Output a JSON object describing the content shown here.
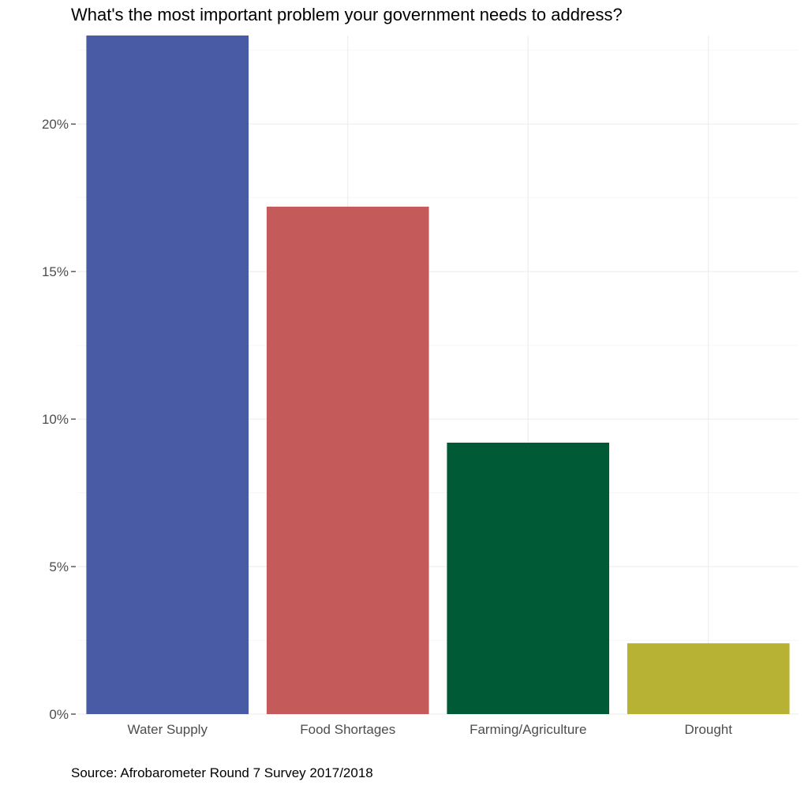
{
  "chart_data": {
    "type": "bar",
    "title": "What's the most important problem your government needs to address?",
    "caption": "Source: Afrobarometer Round 7 Survey 2017/2018",
    "xlabel": "",
    "ylabel": "",
    "categories": [
      "Water Supply",
      "Food Shortages",
      "Farming/Agriculture",
      "Drought"
    ],
    "values": [
      23.0,
      17.2,
      9.2,
      2.4
    ],
    "colors": [
      "#4a5ba6",
      "#c45a5a",
      "#005a36",
      "#b8b234"
    ],
    "ylim": [
      0,
      23
    ],
    "yticks": [
      0,
      5,
      10,
      15,
      20
    ],
    "ytick_labels": [
      "0%",
      "5%",
      "10%",
      "15%",
      "20%"
    ],
    "grid": true,
    "legend": "none"
  }
}
